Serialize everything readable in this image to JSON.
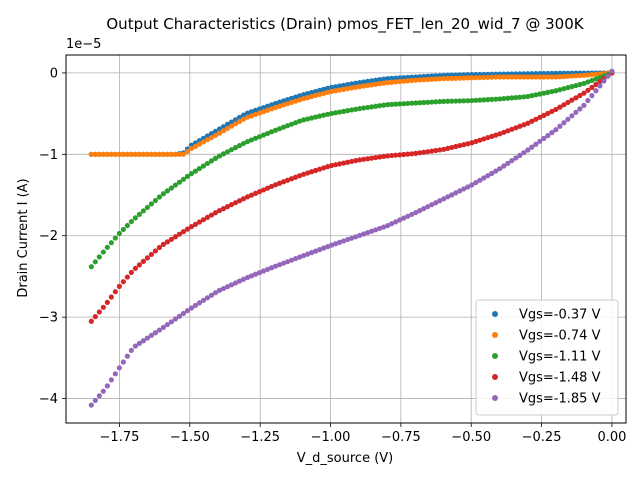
{
  "chart_data": {
    "type": "scatter",
    "title": "Output Characteristics (Drain) pmos_FET_len_20_wid_7 @ 300K",
    "xlabel": "V_d_source (V)",
    "ylabel": "Drain Current I (A)",
    "offset_text": "1e−5",
    "xlim": [
      -1.94,
      0.05
    ],
    "ylim": [
      -4.3,
      0.22
    ],
    "x_ticks": [
      -1.75,
      -1.5,
      -1.25,
      -1.0,
      -0.75,
      -0.5,
      -0.25,
      0.0
    ],
    "x_tick_labels": [
      "−1.75",
      "−1.50",
      "−1.25",
      "−1.00",
      "−0.75",
      "−0.50",
      "−0.25",
      "0.00"
    ],
    "y_ticks": [
      -4,
      -3,
      -2,
      -1,
      0
    ],
    "y_tick_labels": [
      "−4",
      "−3",
      "−2",
      "−1",
      "0"
    ],
    "y_unit_scale": "1e-5",
    "grid": true,
    "legend_position": "lower-right",
    "series": [
      {
        "name": "Vgs=-0.37 V",
        "color": "#1f77b4",
        "x": [
          -1.85,
          -1.75,
          -1.65,
          -1.55,
          -1.52,
          -1.5,
          -1.4,
          -1.3,
          -1.2,
          -1.1,
          -1.0,
          -0.9,
          -0.8,
          -0.7,
          -0.6,
          -0.5,
          -0.4,
          -0.3,
          -0.2,
          -0.1,
          0.0
        ],
        "y": [
          -1.0,
          -1.0,
          -1.0,
          -1.0,
          -0.98,
          -0.9,
          -0.7,
          -0.5,
          -0.38,
          -0.27,
          -0.18,
          -0.12,
          -0.07,
          -0.05,
          -0.03,
          -0.02,
          -0.015,
          -0.01,
          -0.005,
          -0.002,
          0.0
        ]
      },
      {
        "name": "Vgs=-0.74 V",
        "color": "#ff7f0e",
        "x": [
          -1.85,
          -1.75,
          -1.65,
          -1.55,
          -1.52,
          -1.5,
          -1.4,
          -1.3,
          -1.2,
          -1.1,
          -1.0,
          -0.9,
          -0.8,
          -0.7,
          -0.6,
          -0.5,
          -0.4,
          -0.3,
          -0.2,
          -0.1,
          0.0
        ],
        "y": [
          -1.0,
          -1.0,
          -1.0,
          -1.0,
          -1.0,
          -0.94,
          -0.75,
          -0.55,
          -0.43,
          -0.32,
          -0.23,
          -0.17,
          -0.12,
          -0.09,
          -0.07,
          -0.06,
          -0.05,
          -0.05,
          -0.05,
          -0.03,
          0.0
        ]
      },
      {
        "name": "Vgs=-1.11 V",
        "color": "#2ca02c",
        "x": [
          -1.85,
          -1.8,
          -1.75,
          -1.7,
          -1.6,
          -1.5,
          -1.4,
          -1.3,
          -1.2,
          -1.1,
          -1.0,
          -0.9,
          -0.8,
          -0.7,
          -0.6,
          -0.5,
          -0.4,
          -0.3,
          -0.2,
          -0.1,
          0.0
        ],
        "y": [
          -2.38,
          -2.17,
          -1.97,
          -1.8,
          -1.5,
          -1.25,
          -1.03,
          -0.85,
          -0.71,
          -0.58,
          -0.5,
          -0.44,
          -0.39,
          -0.37,
          -0.35,
          -0.34,
          -0.32,
          -0.29,
          -0.22,
          -0.13,
          0.0
        ]
      },
      {
        "name": "Vgs=-1.48 V",
        "color": "#d62728",
        "x": [
          -1.85,
          -1.8,
          -1.75,
          -1.7,
          -1.6,
          -1.5,
          -1.4,
          -1.3,
          -1.2,
          -1.1,
          -1.0,
          -0.9,
          -0.8,
          -0.7,
          -0.6,
          -0.5,
          -0.4,
          -0.3,
          -0.2,
          -0.1,
          0.0
        ],
        "y": [
          -3.05,
          -2.85,
          -2.62,
          -2.42,
          -2.12,
          -1.9,
          -1.7,
          -1.53,
          -1.38,
          -1.25,
          -1.14,
          -1.07,
          -1.02,
          -0.99,
          -0.94,
          -0.86,
          -0.75,
          -0.62,
          -0.45,
          -0.25,
          0.0
        ]
      },
      {
        "name": "Vgs=-1.85 V",
        "color": "#9467bd",
        "x": [
          -1.85,
          -1.8,
          -1.75,
          -1.7,
          -1.6,
          -1.5,
          -1.4,
          -1.3,
          -1.2,
          -1.1,
          -1.0,
          -0.9,
          -0.8,
          -0.7,
          -0.6,
          -0.5,
          -0.4,
          -0.3,
          -0.2,
          -0.1,
          0.0
        ],
        "y": [
          -4.08,
          -3.88,
          -3.62,
          -3.37,
          -3.14,
          -2.9,
          -2.68,
          -2.52,
          -2.38,
          -2.25,
          -2.12,
          -2.0,
          -1.88,
          -1.72,
          -1.55,
          -1.38,
          -1.18,
          -0.95,
          -0.7,
          -0.4,
          0.02
        ]
      }
    ]
  }
}
